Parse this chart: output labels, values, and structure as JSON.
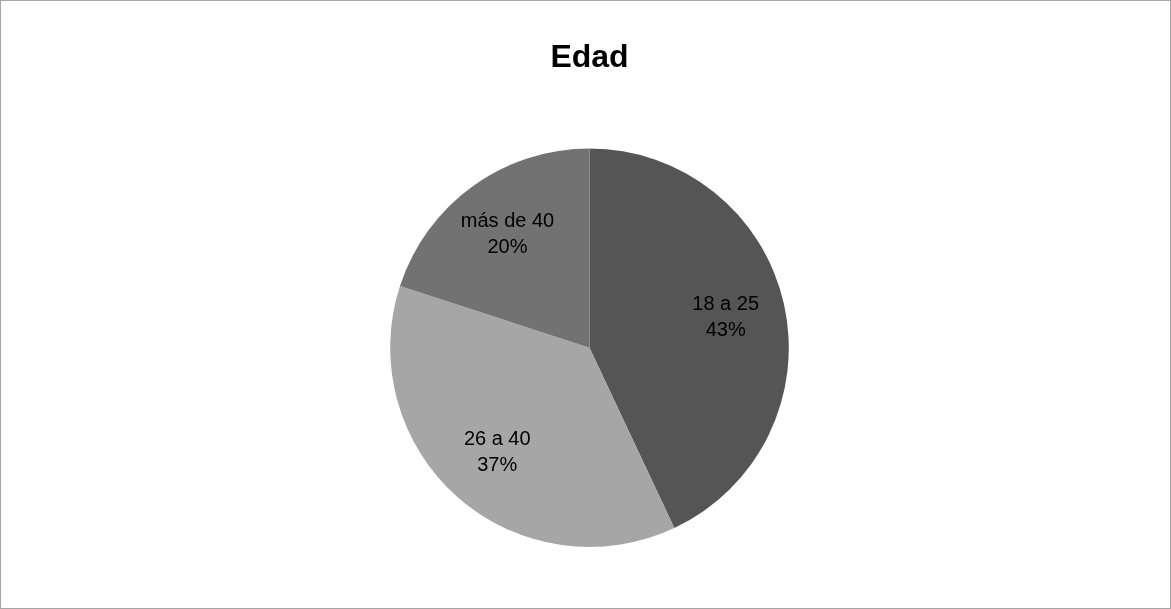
{
  "chart_data": {
    "type": "pie",
    "title": "Edad",
    "categories": [
      "18 a 25",
      "26 a 40",
      "más de 40"
    ],
    "values": [
      43,
      37,
      20
    ],
    "value_labels": [
      "43%",
      "37%",
      "20%"
    ],
    "colors": [
      "#555555",
      "#a6a6a6",
      "#727272"
    ]
  }
}
